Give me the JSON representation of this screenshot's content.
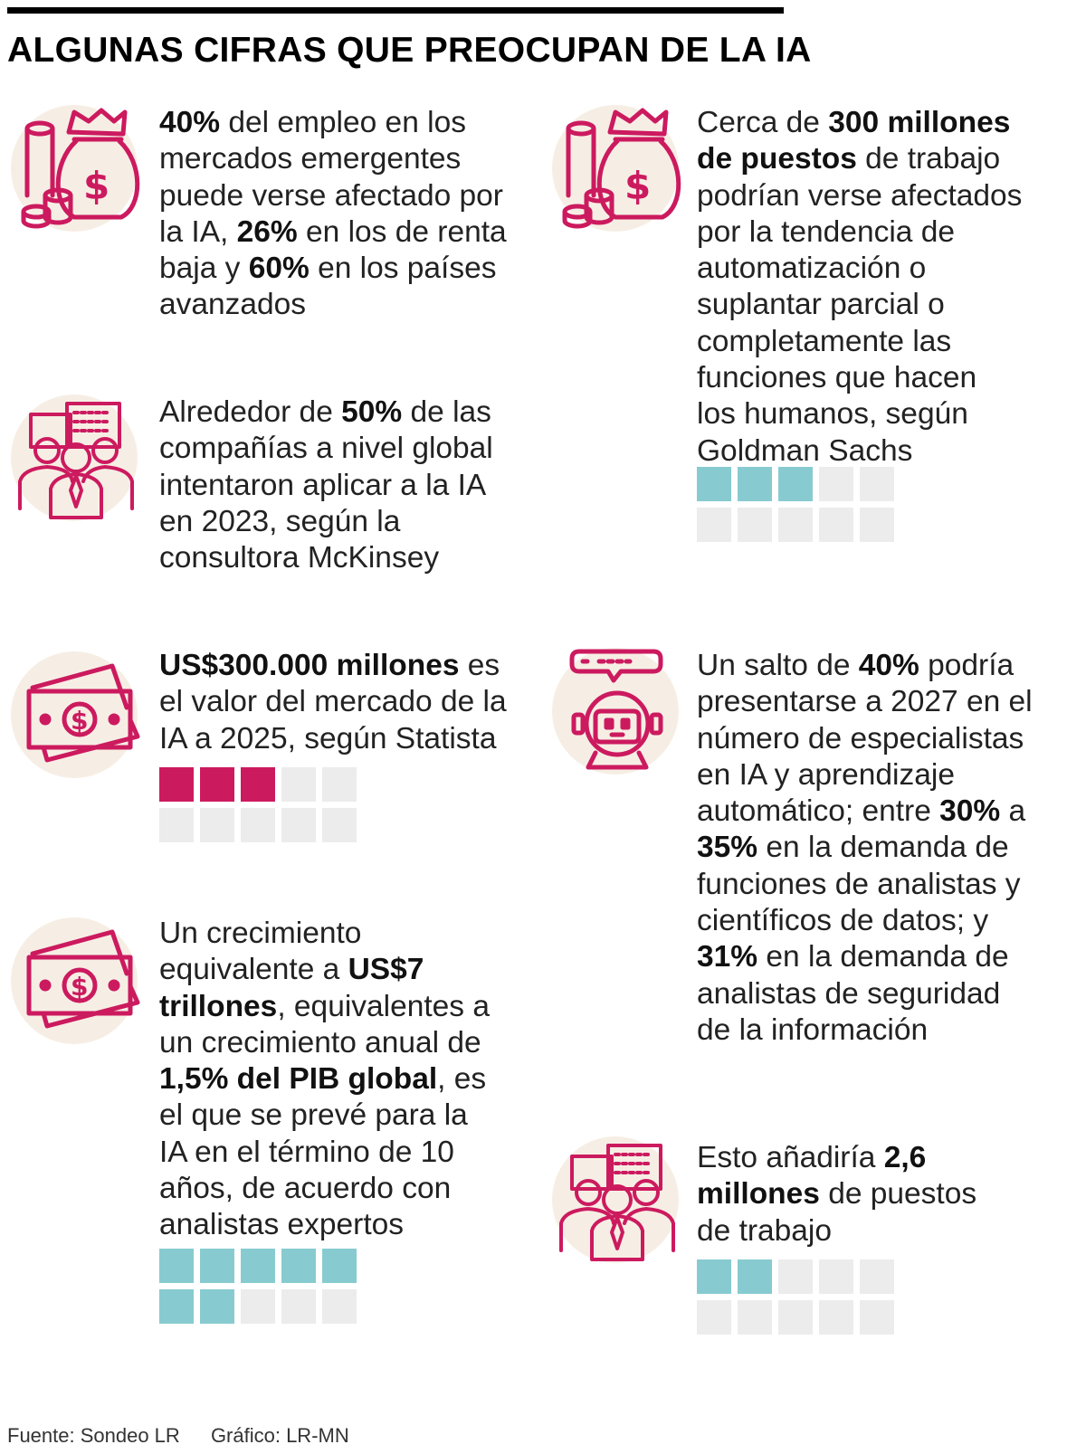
{
  "title": "ALGUNAS CIFRAS QUE PREOCUPAN DE LA IA",
  "colors": {
    "icon": "#cc1a5f",
    "icon_bg": "#f6eee4",
    "teal": "#87cbd0",
    "pink": "#cc1a5f",
    "empty": "#ececec"
  },
  "items": [
    {
      "icon": "money-bag-coins-icon",
      "lines": [
        [
          {
            "t": "40%",
            "b": true
          },
          {
            "t": " del empleo en los"
          }
        ],
        [
          {
            "t": "mercados emergentes"
          }
        ],
        [
          {
            "t": "puede verse afectado por"
          }
        ],
        [
          {
            "t": "la IA, "
          },
          {
            "t": "26%",
            "b": true
          },
          {
            "t": " en los de renta"
          }
        ],
        [
          {
            "t": "baja y "
          },
          {
            "t": "60%",
            "b": true
          },
          {
            "t": " en los países"
          }
        ],
        [
          {
            "t": "avanzados"
          }
        ]
      ]
    },
    {
      "icon": "business-team-icon",
      "lines": [
        [
          {
            "t": "Alrededor de "
          },
          {
            "t": "50%",
            "b": true
          },
          {
            "t": " de las"
          }
        ],
        [
          {
            "t": "compañías a nivel global"
          }
        ],
        [
          {
            "t": "intentaron aplicar a la IA"
          }
        ],
        [
          {
            "t": "en 2023, según la"
          }
        ],
        [
          {
            "t": "consultora McKinsey"
          }
        ]
      ]
    },
    {
      "icon": "banknote-icon",
      "lines": [
        [
          {
            "t": "US$300.000 millones",
            "b": true
          },
          {
            "t": " es"
          }
        ],
        [
          {
            "t": "el valor del mercado de la"
          }
        ],
        [
          {
            "t": "IA a 2025, según Statista"
          }
        ]
      ],
      "grid": {
        "filled": 3,
        "total": 10,
        "color": "pink"
      }
    },
    {
      "icon": "banknote-icon",
      "lines": [
        [
          {
            "t": "Un crecimiento"
          }
        ],
        [
          {
            "t": "equivalente a "
          },
          {
            "t": "US$7",
            "b": true
          }
        ],
        [
          {
            "t": "trillones",
            "b": true
          },
          {
            "t": ", equivalentes a"
          }
        ],
        [
          {
            "t": "un crecimiento anual de"
          }
        ],
        [
          {
            "t": "1,5% del PIB global",
            "b": true
          },
          {
            "t": ", es"
          }
        ],
        [
          {
            "t": "el que se prevé para la"
          }
        ],
        [
          {
            "t": "IA en el término de 10"
          }
        ],
        [
          {
            "t": "años, de acuerdo con"
          }
        ],
        [
          {
            "t": "analistas expertos"
          }
        ]
      ],
      "grid": {
        "filled": 7,
        "total": 10,
        "color": "teal"
      }
    },
    {
      "icon": "money-bag-coins-icon",
      "lines": [
        [
          {
            "t": "Cerca de "
          },
          {
            "t": "300 millones",
            "b": true
          }
        ],
        [
          {
            "t": "de puestos",
            "b": true
          },
          {
            "t": " de trabajo"
          }
        ],
        [
          {
            "t": "podrían verse afectados"
          }
        ],
        [
          {
            "t": "por la tendencia de"
          }
        ],
        [
          {
            "t": "automatización o"
          }
        ],
        [
          {
            "t": "suplantar parcial o"
          }
        ],
        [
          {
            "t": "completamente las"
          }
        ],
        [
          {
            "t": "funciones que hacen"
          }
        ],
        [
          {
            "t": "los humanos, según"
          }
        ],
        [
          {
            "t": "Goldman Sachs"
          }
        ]
      ],
      "grid": {
        "filled": 3,
        "total": 10,
        "color": "teal"
      }
    },
    {
      "icon": "robot-chat-icon",
      "lines": [
        [
          {
            "t": "Un salto de "
          },
          {
            "t": "40%",
            "b": true
          },
          {
            "t": " podría"
          }
        ],
        [
          {
            "t": "presentarse a 2027 en el"
          }
        ],
        [
          {
            "t": "número de especialistas"
          }
        ],
        [
          {
            "t": "en IA y aprendizaje"
          }
        ],
        [
          {
            "t": "automático; entre "
          },
          {
            "t": "30%",
            "b": true
          },
          {
            "t": " a"
          }
        ],
        [
          {
            "t": "35%",
            "b": true
          },
          {
            "t": " en la demanda de"
          }
        ],
        [
          {
            "t": "funciones de analistas y"
          }
        ],
        [
          {
            "t": "científicos de datos; y"
          }
        ],
        [
          {
            "t": "31%",
            "b": true
          },
          {
            "t": " en la demanda de"
          }
        ],
        [
          {
            "t": "analistas de seguridad"
          }
        ],
        [
          {
            "t": "de la información"
          }
        ]
      ]
    },
    {
      "icon": "business-team-icon",
      "lines": [
        [
          {
            "t": "Esto añadiría "
          },
          {
            "t": "2,6",
            "b": true
          }
        ],
        [
          {
            "t": "millones",
            "b": true
          },
          {
            "t": " de puestos"
          }
        ],
        [
          {
            "t": "de trabajo"
          }
        ]
      ],
      "grid": {
        "filled": 2,
        "total": 10,
        "color": "teal"
      }
    }
  ],
  "footer": {
    "source": "Fuente: Sondeo LR",
    "graphic": "Gráfico: LR-MN"
  }
}
